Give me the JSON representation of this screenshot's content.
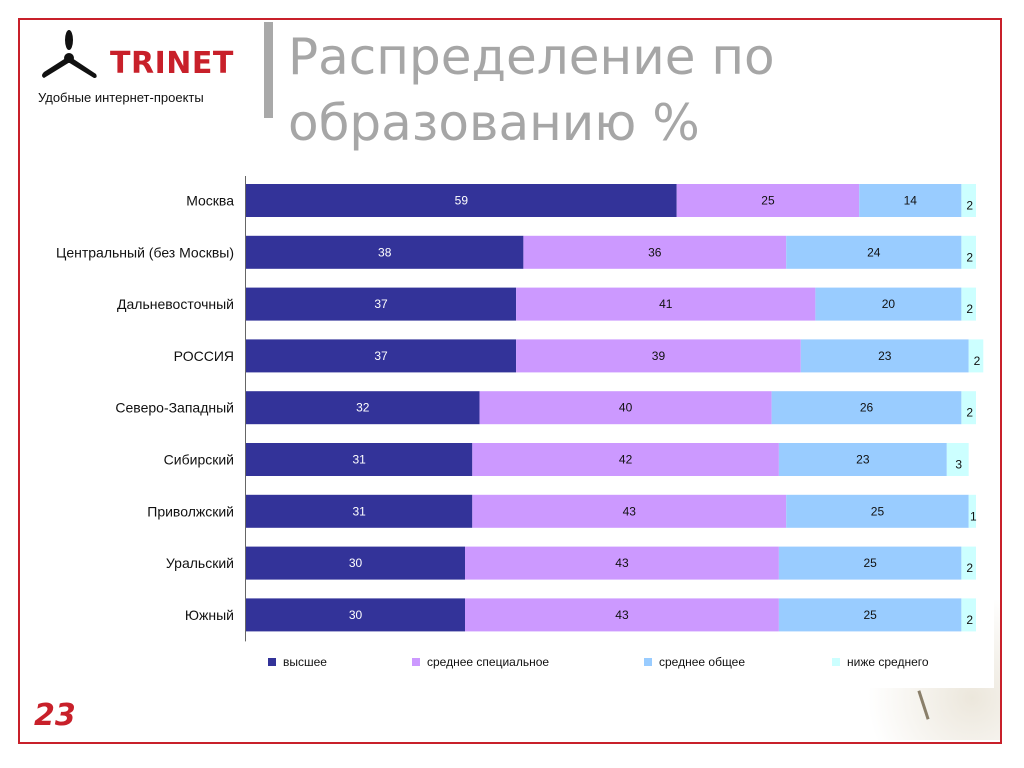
{
  "logo": {
    "name": "TRINET",
    "tagline": "Удобные интернет-проекты"
  },
  "title": "Распределение по образованию %",
  "page_number": "23",
  "colors": {
    "frame": "#c8202a",
    "higher": "#333399",
    "special": "#cc99ff",
    "general": "#99ccff",
    "below": "#ccffff"
  },
  "chart_data": {
    "type": "bar",
    "orientation": "horizontal",
    "stacked": true,
    "categories": [
      "Москва",
      "Центральный (без Москвы)",
      "Дальневосточный",
      "РОССИЯ",
      "Северо-Западный",
      "Сибирский",
      "Приволжский",
      "Уральский",
      "Южный"
    ],
    "series": [
      {
        "name": "высшее",
        "color": "#333399",
        "values": [
          59,
          38,
          37,
          37,
          32,
          31,
          31,
          30,
          30
        ]
      },
      {
        "name": "среднее специальное",
        "color": "#cc99ff",
        "values": [
          25,
          36,
          41,
          39,
          40,
          42,
          43,
          43,
          43
        ]
      },
      {
        "name": "среднее общее",
        "color": "#99ccff",
        "values": [
          14,
          24,
          20,
          23,
          26,
          23,
          25,
          25,
          25
        ]
      },
      {
        "name": "ниже среднего",
        "color": "#ccffff",
        "values": [
          2,
          2,
          2,
          2,
          2,
          3,
          1,
          2,
          2
        ]
      }
    ],
    "xlim": [
      0,
      100
    ],
    "grid": false,
    "legend": "bottom"
  }
}
